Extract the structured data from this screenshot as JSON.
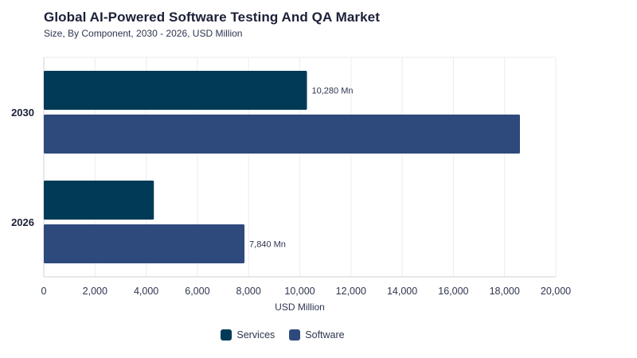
{
  "chart_data": {
    "type": "bar",
    "orientation": "horizontal",
    "title": "Global AI-Powered Software Testing And QA Market",
    "subtitle": "Size, By Component, 2030 - 2026, USD Million",
    "categories": [
      "2030",
      "2026"
    ],
    "series": [
      {
        "name": "Services",
        "color": "#003a57",
        "values": [
          10280,
          4300
        ]
      },
      {
        "name": "Software",
        "color": "#2e4a7d",
        "values": [
          18600,
          7840
        ]
      }
    ],
    "data_labels": [
      {
        "category": "2030",
        "series": "Services",
        "text": "10,280 Mn"
      },
      {
        "category": "2026",
        "series": "Software",
        "text": "7,840 Mn"
      }
    ],
    "xlabel": "USD Million",
    "ylabel": "",
    "xlim": [
      0,
      20000
    ],
    "x_ticks": [
      0,
      2000,
      4000,
      6000,
      8000,
      10000,
      12000,
      14000,
      16000,
      18000,
      20000
    ],
    "x_tick_labels": [
      "0",
      "2,000",
      "4,000",
      "6,000",
      "8,000",
      "10,000",
      "12,000",
      "14,000",
      "16,000",
      "18,000",
      "20,000"
    ],
    "grid": true,
    "legend_position": "bottom-center"
  }
}
